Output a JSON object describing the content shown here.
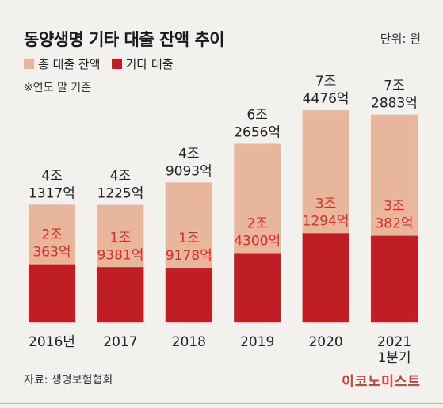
{
  "header": {
    "title": "동양생명 기타 대출 잔액 추이",
    "unit": "단위: 원",
    "note": "※연도 말 기준"
  },
  "footer": {
    "source": "자료: 생명보험협회",
    "brand": "이코노미스트"
  },
  "colors": {
    "total": "#e8b59d",
    "other": "#be1e24",
    "inner_text": "#d92b22",
    "top_text": "#222222"
  },
  "chart_data": {
    "type": "bar",
    "categories": [
      "2016년",
      "2017",
      "2018",
      "2019",
      "2020",
      "2021 1분기"
    ],
    "category_lines": [
      [
        "2016년"
      ],
      [
        "2017"
      ],
      [
        "2018"
      ],
      [
        "2019"
      ],
      [
        "2020"
      ],
      [
        "2021",
        "1분기"
      ]
    ],
    "series": [
      {
        "name": "총 대출 잔액",
        "values": [
          41317,
          41225,
          49093,
          62656,
          74476,
          72883
        ],
        "labels": [
          [
            "4조",
            "1317억"
          ],
          [
            "4조",
            "1225억"
          ],
          [
            "4조",
            "9093억"
          ],
          [
            "6조",
            "2656억"
          ],
          [
            "7조",
            "4476억"
          ],
          [
            "7조",
            "2883억"
          ]
        ]
      },
      {
        "name": "기타 대출",
        "values": [
          20363,
          19381,
          19178,
          24300,
          31294,
          30382
        ],
        "labels": [
          [
            "2조",
            "363억"
          ],
          [
            "1조",
            "9381억"
          ],
          [
            "1조",
            "9178억"
          ],
          [
            "2조",
            "4300억"
          ],
          [
            "3조",
            "1294억"
          ],
          [
            "3조",
            "382억"
          ]
        ]
      }
    ],
    "ylabel": "",
    "xlabel": ""
  }
}
